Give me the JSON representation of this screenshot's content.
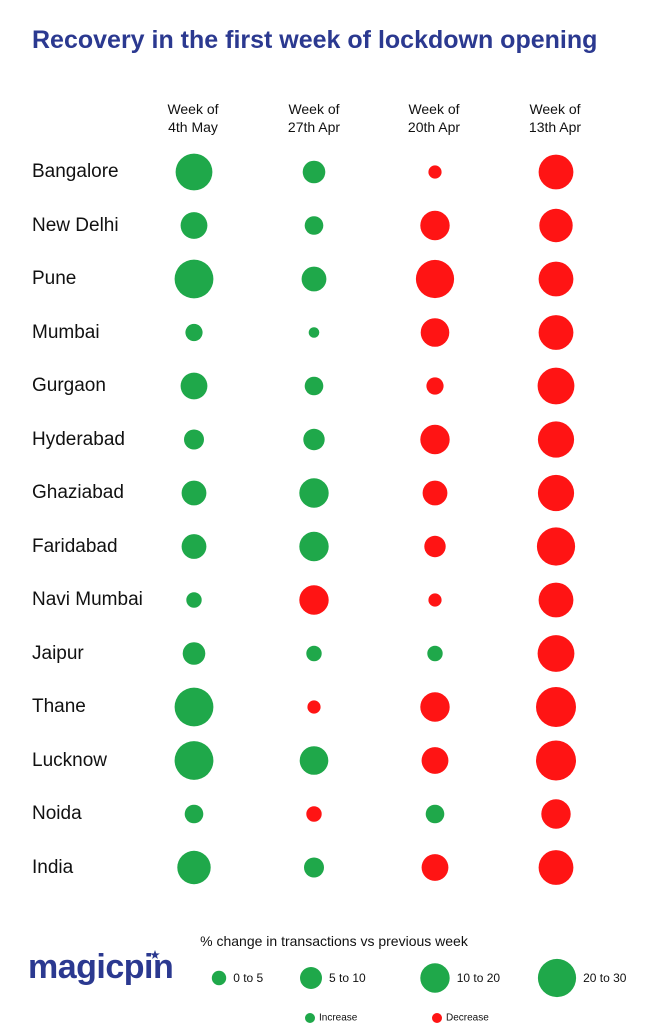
{
  "brand": "magicpin",
  "chart_data": {
    "type": "bubble-grid",
    "title": "Recovery in the first week of lockdown opening",
    "columns": [
      [
        "Week of",
        "4th May"
      ],
      [
        "Week of",
        "27th Apr"
      ],
      [
        "Week of",
        "20th Apr"
      ],
      [
        "Week of",
        "13th Apr"
      ]
    ],
    "rows": [
      {
        "city": "Bangalore",
        "values": [
          25,
          8,
          -2,
          -22
        ]
      },
      {
        "city": "New Delhi",
        "values": [
          12,
          5,
          -15,
          -20
        ]
      },
      {
        "city": "Pune",
        "values": [
          28,
          10,
          -27,
          -22
        ]
      },
      {
        "city": "Mumbai",
        "values": [
          4,
          1,
          -14,
          -22
        ]
      },
      {
        "city": "Gurgaon",
        "values": [
          12,
          5,
          -4,
          -25
        ]
      },
      {
        "city": "Hyderabad",
        "values": [
          6,
          7,
          -15,
          -24
        ]
      },
      {
        "city": "Ghaziabad",
        "values": [
          10,
          15,
          -10,
          -24
        ]
      },
      {
        "city": "Faridabad",
        "values": [
          10,
          15,
          -7,
          -27
        ]
      },
      {
        "city": "Navi Mumbai",
        "values": [
          3,
          -15,
          -2,
          -22
        ]
      },
      {
        "city": "Jaipur",
        "values": [
          8,
          3,
          3,
          -25
        ]
      },
      {
        "city": "Thane",
        "values": [
          28,
          -2,
          -15,
          -30
        ]
      },
      {
        "city": "Lucknow",
        "values": [
          28,
          14,
          -12,
          -30
        ]
      },
      {
        "city": "Noida",
        "values": [
          5,
          -3,
          5,
          -15
        ]
      },
      {
        "city": "India",
        "values": [
          20,
          6,
          -12,
          -22
        ]
      }
    ],
    "colors": {
      "increase": "#1fa84a",
      "decrease": "#ff1414"
    },
    "legend": {
      "title": "% change in transactions vs previous week",
      "sizes": [
        {
          "label": "0 to 5",
          "value": 2.5
        },
        {
          "label": "5 to 10",
          "value": 7.5
        },
        {
          "label": "10 to 20",
          "value": 15
        },
        {
          "label": "20 to 30",
          "value": 27
        }
      ],
      "colors": [
        {
          "label": "Increase",
          "key": "increase"
        },
        {
          "label": "Decrease",
          "key": "decrease"
        }
      ]
    }
  }
}
